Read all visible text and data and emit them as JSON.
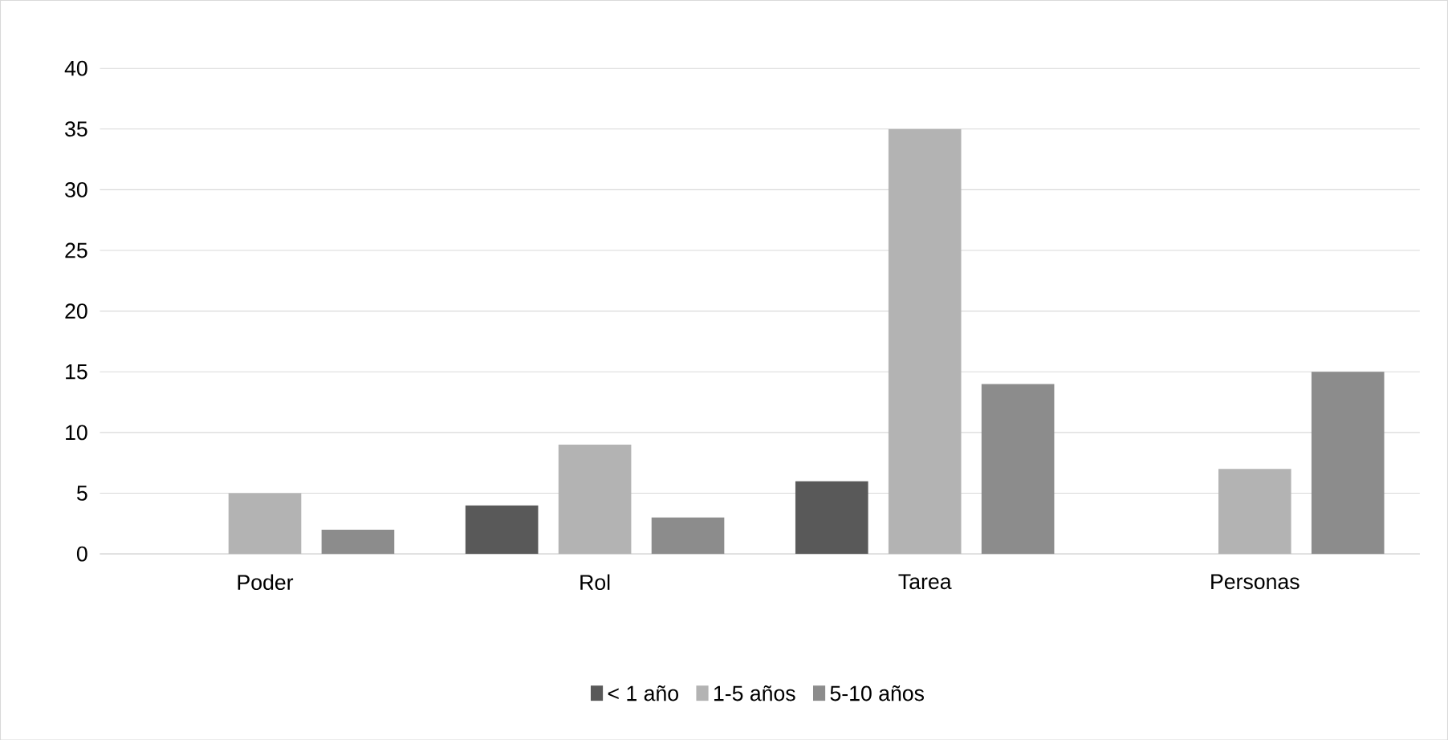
{
  "chart_data": {
    "type": "bar",
    "categories": [
      "Poder",
      "Rol",
      "Tarea",
      "Personas"
    ],
    "series": [
      {
        "name": "< 1 año",
        "color": "#595959",
        "values": [
          0,
          4,
          6,
          0
        ]
      },
      {
        "name": "1-5 años",
        "color": "#b3b3b3",
        "values": [
          5,
          9,
          35,
          7
        ]
      },
      {
        "name": "5-10 años",
        "color": "#8c8c8c",
        "values": [
          2,
          3,
          14,
          15
        ]
      }
    ],
    "ylim": [
      0,
      40
    ],
    "yticks": [
      0,
      5,
      10,
      15,
      20,
      25,
      30,
      35,
      40
    ],
    "grid": "y",
    "legend": "bottom"
  }
}
